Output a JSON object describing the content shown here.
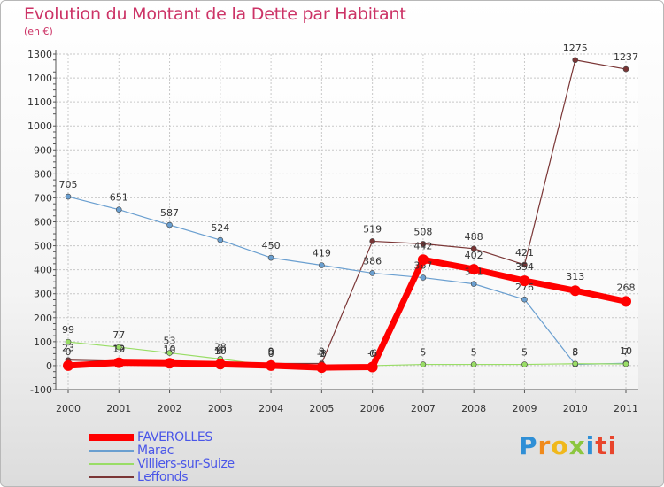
{
  "chart_data": {
    "type": "line",
    "title": "Evolution du Montant de la Dette par Habitant",
    "subtitle": "(en €)",
    "x": [
      "2000",
      "2001",
      "2002",
      "2003",
      "2004",
      "2005",
      "2006",
      "2007",
      "2008",
      "2009",
      "2010",
      "2011"
    ],
    "ylim": [
      -100,
      1300
    ],
    "yticks": [
      -100,
      0,
      100,
      200,
      300,
      400,
      500,
      600,
      700,
      800,
      900,
      1000,
      1100,
      1200,
      1300
    ],
    "grid": true,
    "legend_position": "bottom-left",
    "series": [
      {
        "name": "FAVEROLLES",
        "color": "#ff0000",
        "values": [
          0,
          12,
          10,
          6,
          0,
          -8,
          -6,
          442,
          402,
          354,
          313,
          268
        ],
        "labels": [
          "0",
          "12",
          "10",
          "6",
          "0",
          "-8",
          "-6",
          "442",
          "402",
          "354",
          "313",
          "268"
        ]
      },
      {
        "name": "Marac",
        "color": "#6a9fd0",
        "values": [
          705,
          651,
          587,
          524,
          450,
          419,
          386,
          367,
          341,
          276,
          5,
          10
        ],
        "labels": [
          "705",
          "651",
          "587",
          "524",
          "450",
          "419",
          "386",
          "367",
          "341",
          "276",
          "5",
          "10"
        ]
      },
      {
        "name": "Villiers-sur-Suize",
        "color": "#99dd66",
        "values": [
          99,
          77,
          53,
          28,
          0,
          0,
          0,
          5,
          5,
          5,
          8,
          7
        ],
        "labels": [
          "99",
          "77",
          "53",
          "28",
          "0",
          "0",
          "0",
          "5",
          "5",
          "5",
          "8",
          "7"
        ]
      },
      {
        "name": "Leffonds",
        "color": "#7a3535",
        "values": [
          23,
          19,
          13,
          10,
          9,
          9,
          519,
          508,
          488,
          421,
          1275,
          1237
        ],
        "labels": [
          "23",
          "19",
          "13",
          "10",
          "9",
          "9",
          "519",
          "508",
          "488",
          "421",
          "1275",
          "1237"
        ]
      }
    ]
  },
  "logo": {
    "text": "Proxiti",
    "letters": [
      "P",
      "r",
      "o",
      "x",
      "i",
      "ti"
    ]
  }
}
